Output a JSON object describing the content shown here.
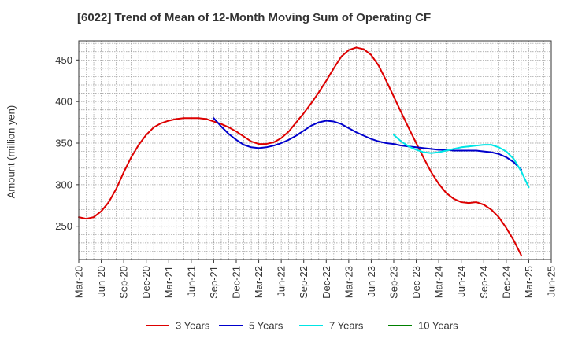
{
  "chart_data": {
    "type": "line",
    "title": "[6022]  Trend of Mean of 12-Month Moving Sum of Operating CF",
    "xlabel": "",
    "ylabel": "Amount (million yen)",
    "ylim": [
      210,
      473
    ],
    "yticks": [
      250,
      300,
      350,
      400,
      450
    ],
    "grid": true,
    "legend_position": "bottom",
    "x_tick_labels": [
      "Mar-20",
      "Jun-20",
      "Sep-20",
      "Dec-20",
      "Mar-21",
      "Jun-21",
      "Sep-21",
      "Dec-21",
      "Mar-22",
      "Jun-22",
      "Sep-22",
      "Dec-22",
      "Mar-23",
      "Jun-23",
      "Sep-23",
      "Dec-23",
      "Mar-24",
      "Jun-24",
      "Sep-24",
      "Dec-24",
      "Mar-25",
      "Jun-25"
    ],
    "series": [
      {
        "name": "3 Years",
        "color": "#dd0000",
        "start_month_index": 0,
        "values": [
          261,
          259,
          261,
          268,
          279,
          295,
          315,
          333,
          348,
          360,
          369,
          374,
          377,
          379,
          380,
          380,
          380,
          379,
          376,
          373,
          369,
          364,
          358,
          352,
          349,
          349,
          351,
          356,
          364,
          375,
          386,
          398,
          411,
          425,
          440,
          454,
          462,
          465,
          463,
          456,
          443,
          425,
          406,
          387,
          368,
          350,
          332,
          315,
          301,
          290,
          283,
          279,
          278,
          279,
          276,
          270,
          261,
          248,
          233,
          215
        ]
      },
      {
        "name": "5 Years",
        "color": "#0000cc",
        "start_month_index": 18,
        "values": [
          380,
          370,
          361,
          354,
          348,
          345,
          344,
          345,
          347,
          350,
          354,
          359,
          365,
          371,
          375,
          377,
          376,
          373,
          368,
          363,
          359,
          355,
          352,
          350,
          349,
          347,
          346,
          345,
          344,
          343,
          342,
          342,
          341,
          341,
          341,
          341,
          340,
          339,
          337,
          333,
          327,
          318
        ]
      },
      {
        "name": "7 Years",
        "color": "#00e5e5",
        "start_month_index": 42,
        "values": [
          360,
          352,
          346,
          342,
          339,
          338,
          339,
          341,
          343,
          345,
          346,
          347,
          348,
          348,
          345,
          340,
          331,
          316,
          297
        ]
      },
      {
        "name": "10 Years",
        "color": "#008000",
        "start_month_index": 0,
        "values": []
      }
    ]
  }
}
